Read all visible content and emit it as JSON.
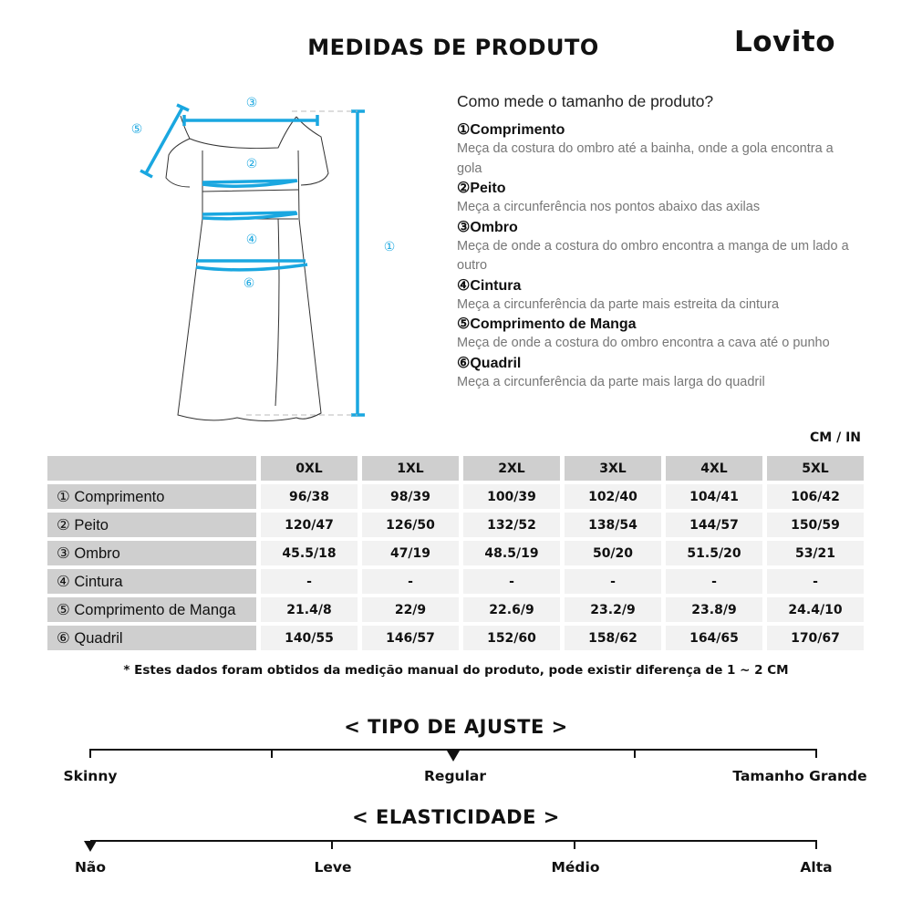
{
  "header": {
    "title": "MEDIDAS DE PRODUTO",
    "logo": "Lovito"
  },
  "diagram": {
    "markers": [
      "①",
      "②",
      "③",
      "④",
      "⑤",
      "⑥"
    ],
    "accent": "#1aa7e0"
  },
  "guide": {
    "heading": "Como mede o tamanho de produto?",
    "items": [
      {
        "label": "①Comprimento",
        "desc": "Meça da costura do ombro até a bainha, onde a gola encontra a gola"
      },
      {
        "label": "②Peito",
        "desc": "Meça a circunferência nos pontos abaixo das axilas"
      },
      {
        "label": "③Ombro",
        "desc": "Meça de onde a costura do ombro encontra a manga de um lado a outro"
      },
      {
        "label": "④Cintura",
        "desc": "Meça a circunferência da parte mais estreita da cintura"
      },
      {
        "label": "⑤Comprimento de Manga",
        "desc": "Meça de onde a costura do ombro encontra a cava até o punho"
      },
      {
        "label": "⑥Quadril",
        "desc": "Meça a circunferência da parte mais larga do quadril"
      }
    ]
  },
  "table": {
    "unit": "CM / IN",
    "sizes": [
      "0XL",
      "1XL",
      "2XL",
      "3XL",
      "4XL",
      "5XL"
    ],
    "rows": [
      {
        "label": "① Comprimento",
        "values": [
          "96/38",
          "98/39",
          "100/39",
          "102/40",
          "104/41",
          "106/42"
        ]
      },
      {
        "label": "② Peito",
        "values": [
          "120/47",
          "126/50",
          "132/52",
          "138/54",
          "144/57",
          "150/59"
        ]
      },
      {
        "label": "③ Ombro",
        "values": [
          "45.5/18",
          "47/19",
          "48.5/19",
          "50/20",
          "51.5/20",
          "53/21"
        ]
      },
      {
        "label": "④ Cintura",
        "values": [
          "-",
          "-",
          "-",
          "-",
          "-",
          "-"
        ]
      },
      {
        "label": "⑤ Comprimento de Manga",
        "values": [
          "21.4/8",
          "22/9",
          "22.6/9",
          "23.2/9",
          "23.8/9",
          "24.4/10"
        ]
      },
      {
        "label": "⑥ Quadril",
        "values": [
          "140/55",
          "146/57",
          "152/60",
          "158/62",
          "164/65",
          "170/67"
        ]
      }
    ],
    "note": "* Estes dados foram obtidos da medição manual do produto, pode existir diferença de 1 ~ 2 CM"
  },
  "fit": {
    "title": "< TIPO DE AJUSTE >",
    "labels": [
      "Skinny",
      "Regular",
      "Tamanho Grande"
    ],
    "selected": "Regular"
  },
  "elasticity": {
    "title": "< ELASTICIDADE >",
    "labels": [
      "Não",
      "Leve",
      "Médio",
      "Alta"
    ],
    "selected": "Não"
  }
}
